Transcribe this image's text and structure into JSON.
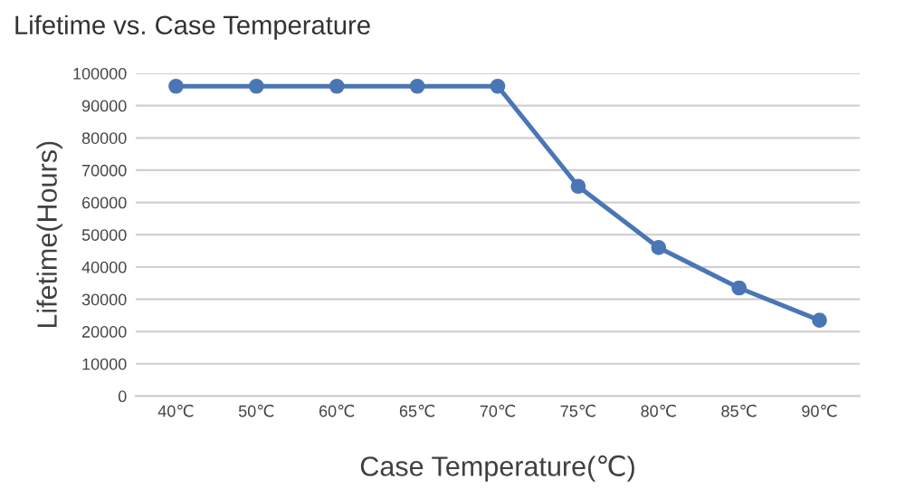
{
  "chart_data": {
    "type": "line",
    "title": "Lifetime vs. Case Temperature",
    "xlabel": "Case Temperature(℃)",
    "ylabel": "Lifetime(Hours)",
    "categories": [
      "40℃",
      "50℃",
      "60℃",
      "65℃",
      "70℃",
      "75℃",
      "80℃",
      "85℃",
      "90℃"
    ],
    "series": [
      {
        "color": "#4a76b5",
        "values": [
          96000,
          96000,
          96000,
          96000,
          96000,
          65000,
          46000,
          33500,
          23500
        ]
      }
    ],
    "ylim": [
      0,
      100000
    ],
    "yticks": [
      0,
      10000,
      20000,
      30000,
      40000,
      50000,
      60000,
      70000,
      80000,
      90000,
      100000
    ],
    "grid": "y",
    "marker": "circle",
    "line_style": "solid",
    "legend": false
  }
}
